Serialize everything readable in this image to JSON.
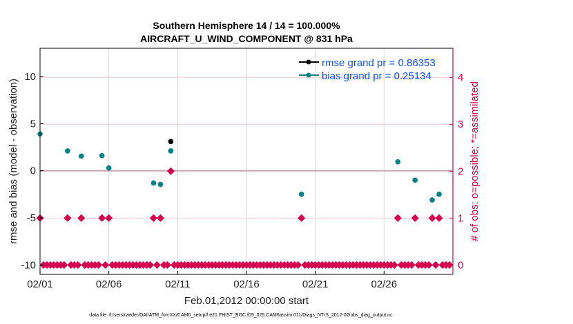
{
  "chart_data": {
    "type": "scatter",
    "title": [
      "Southern Hemisphere 14 / 14 = 100.000%",
      "AIRCRAFT_U_WIND_COMPONENT @ 831 hPa"
    ],
    "xlabel": "Feb.01,2012 00:00:00 start",
    "ylabel": "rmse and bias (model - observation)",
    "y2label": "# of obs: o=possible; *=assimilated",
    "footer": "data file: /Users/raeder/DAI/ATM_forcXX/CAM6_setup/f.e21.FHIST_BGC.f09_025.CAM6assim.011/Diags_NTrS_2012-02/obs_diag_output.nc",
    "x_units": "days since Feb.01,2012 00:00:00",
    "xlim": [
      0,
      30
    ],
    "ylim": [
      -11,
      13
    ],
    "y2lim": [
      -0.2,
      4.62
    ],
    "x_ticks": [
      {
        "v": 0,
        "label": "02/01"
      },
      {
        "v": 5,
        "label": "02/06"
      },
      {
        "v": 10,
        "label": "02/11"
      },
      {
        "v": 15,
        "label": "02/16"
      },
      {
        "v": 20,
        "label": "02/21"
      },
      {
        "v": 25,
        "label": "02/26"
      }
    ],
    "y_ticks": [
      10,
      5,
      0,
      -5,
      -10
    ],
    "y2_ticks": [
      0,
      1,
      2,
      3,
      4
    ],
    "legend": {
      "placement": "top-right",
      "entries": [
        {
          "label": "rmse grand pr = 0.86353",
          "color": "#000000"
        },
        {
          "label": "bias grand pr = 0.25134",
          "color": "#008080"
        }
      ]
    },
    "colors": {
      "rmse": "#000000",
      "bias": "#008080",
      "obs": "#d6004f",
      "legend_text": "#0a50ff"
    },
    "bin_days": 0.25,
    "n_bins": 120,
    "series": [
      {
        "name": "rmse",
        "points": [
          {
            "bin": 38,
            "y": 3.1
          }
        ]
      },
      {
        "name": "bias",
        "points": [
          {
            "bin": 0,
            "y": 3.9
          },
          {
            "bin": 8,
            "y": 2.1
          },
          {
            "bin": 12,
            "y": 1.55
          },
          {
            "bin": 18,
            "y": 1.6
          },
          {
            "bin": 20,
            "y": 0.3
          },
          {
            "bin": 33,
            "y": -1.3
          },
          {
            "bin": 35,
            "y": -1.45
          },
          {
            "bin": 38,
            "y": 2.1
          },
          {
            "bin": 76,
            "y": -2.5
          },
          {
            "bin": 104,
            "y": 0.95
          },
          {
            "bin": 109,
            "y": -1.0
          },
          {
            "bin": 114,
            "y": -3.1
          },
          {
            "bin": 116,
            "y": -2.5
          }
        ]
      }
    ],
    "obs_count_nonzero": {
      "0": 1,
      "8": 1,
      "12": 1,
      "18": 1,
      "20": 1,
      "33": 1,
      "35": 1,
      "38": 2,
      "76": 1,
      "104": 1,
      "109": 1,
      "114": 1,
      "116": 1
    }
  }
}
